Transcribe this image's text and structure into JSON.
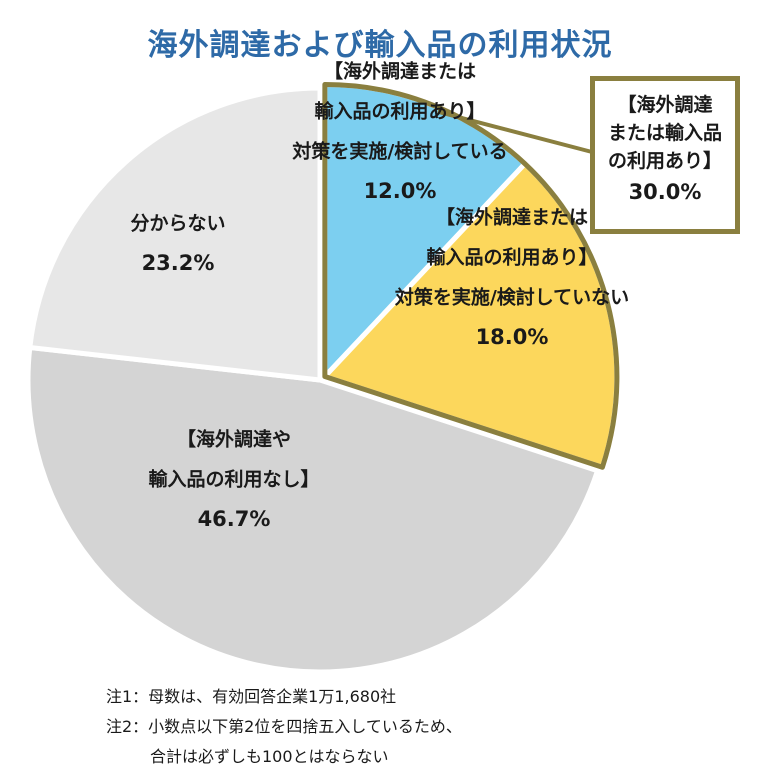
{
  "chart_data": {
    "type": "pie",
    "title": "海外調達および輸入品の利用状況",
    "slices": [
      {
        "label_lines": [
          "【海外調達または",
          "輸入品の利用あり】",
          "対策を実施/検討している"
        ],
        "value": 12.0,
        "value_label": "12.0%",
        "color": "#7ccff0",
        "exploded": true
      },
      {
        "label_lines": [
          "【海外調達または",
          "輸入品の利用あり】",
          "対策を実施/検討していない"
        ],
        "value": 18.0,
        "value_label": "18.0%",
        "color": "#fcd75c",
        "exploded": true
      },
      {
        "label_lines": [
          "【海外調達や",
          "輸入品の利用なし】"
        ],
        "value": 46.7,
        "value_label": "46.7%",
        "color": "#d4d4d4",
        "exploded": false
      },
      {
        "label_lines": [
          "分からない"
        ],
        "value": 23.2,
        "value_label": "23.2%",
        "color": "#e7e7e7",
        "exploded": false
      }
    ],
    "callout": {
      "lines": [
        "【海外調達",
        "または輸入品",
        "の利用あり】"
      ],
      "value_label": "30.0%",
      "border_color": "#8a7f3f"
    }
  },
  "notes": [
    "注1：母数は、有効回答企業1万1,680社",
    "注2：小数点以下第2位を四捨五入しているため、",
    "合計は必ずしも100とはならない"
  ]
}
